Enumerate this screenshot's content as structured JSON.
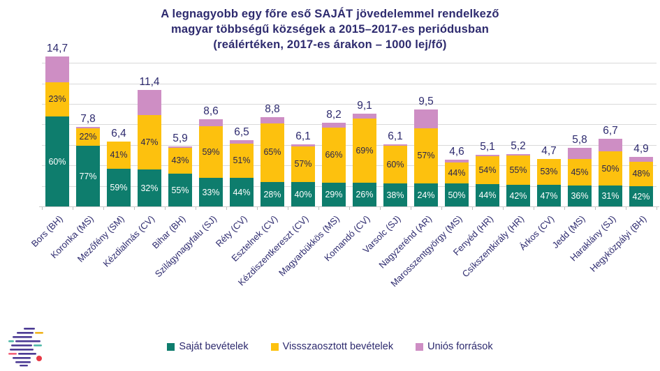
{
  "title": {
    "line1": "A legnagyobb egy főre eső SAJÁT jövedelemmel rendelkező",
    "line2": "magyar többségű községek a 2015–2017-es periódusban",
    "line3": "(reálértéken, 2017-es árakon – 1000 lej/fő)"
  },
  "colors": {
    "title_navy": "#2D2A6E",
    "gridline_gray": "#D9D9D9",
    "own_revenue_green": "#0E7D6D",
    "redistributed_yellow": "#FDC10E",
    "eu_funds_pink": "#CE8EC4"
  },
  "chart_data": {
    "type": "bar",
    "subtype": "stacked",
    "title": "A legnagyobb egy főre eső SAJÁT jövedelemmel rendelkező magyar többségű községek a 2015–2017-es periódusban (reálértéken, 2017-es árakon – 1000 lej/fő)",
    "unit": "1000 lej/fő",
    "categories": [
      "Bors (BH)",
      "Koronka (MS)",
      "Mezőfény (SM)",
      "Kézdialmás (CV)",
      "Bihar (BH)",
      "Szilágynagyfalu (SJ)",
      "Réty (CV)",
      "Esztelnek (CV)",
      "Kézdiszentkereszt (CV)",
      "Magyarbükkös (MS)",
      "Komandó (CV)",
      "Varsolc (SJ)",
      "Nagyzerénd (AR)",
      "Marosszentgyörgy (MS)",
      "Fenyéd (HR)",
      "Csíkszentkirály (HR)",
      "Árkos (CV)",
      "Jedd (MS)",
      "Haraklány (SJ)",
      "Hegyközpályi (BH)"
    ],
    "totals": [
      14.7,
      7.8,
      6.4,
      11.4,
      5.9,
      8.6,
      6.5,
      8.8,
      6.1,
      8.2,
      9.1,
      6.1,
      9.5,
      4.6,
      5.1,
      5.2,
      4.7,
      5.8,
      6.7,
      4.9
    ],
    "totals_labels": [
      "14,7",
      "7,8",
      "6,4",
      "11,4",
      "5,9",
      "8,6",
      "6,5",
      "8,8",
      "6,1",
      "8,2",
      "9,1",
      "6,1",
      "9,5",
      "4,6",
      "5,1",
      "5,2",
      "4,7",
      "5,8",
      "6,7",
      "4,9"
    ],
    "series": [
      {
        "key": "own-revenues",
        "name": "Saját bevételek",
        "color": "#0E7D6D",
        "label_color": "#FFFFFF",
        "show_labels": true,
        "percents": [
          60,
          77,
          59,
          32,
          55,
          33,
          44,
          28,
          40,
          29,
          26,
          38,
          24,
          50,
          44,
          42,
          47,
          36,
          31,
          42
        ]
      },
      {
        "key": "redistributed-revenues",
        "name": "Vissszaosztott bevételek",
        "color": "#FDC10E",
        "label_color": "#28234E",
        "show_labels": true,
        "percents": [
          23,
          22,
          41,
          47,
          43,
          59,
          51,
          65,
          57,
          66,
          69,
          60,
          57,
          44,
          54,
          55,
          53,
          45,
          50,
          48
        ]
      },
      {
        "key": "eu-funds",
        "name": "Uniós források",
        "color": "#CE8EC4",
        "label_color": "#28234E",
        "show_labels": false,
        "percents": [
          17,
          1,
          0,
          21,
          2,
          8,
          5,
          7,
          3,
          5,
          5,
          2,
          19,
          6,
          2,
          3,
          0,
          19,
          19,
          10
        ]
      }
    ],
    "ylim": [
      0,
      15
    ],
    "gridline_step": 2,
    "grid": true,
    "y_axis_labels_visible": false,
    "legend_position": "bottom"
  }
}
